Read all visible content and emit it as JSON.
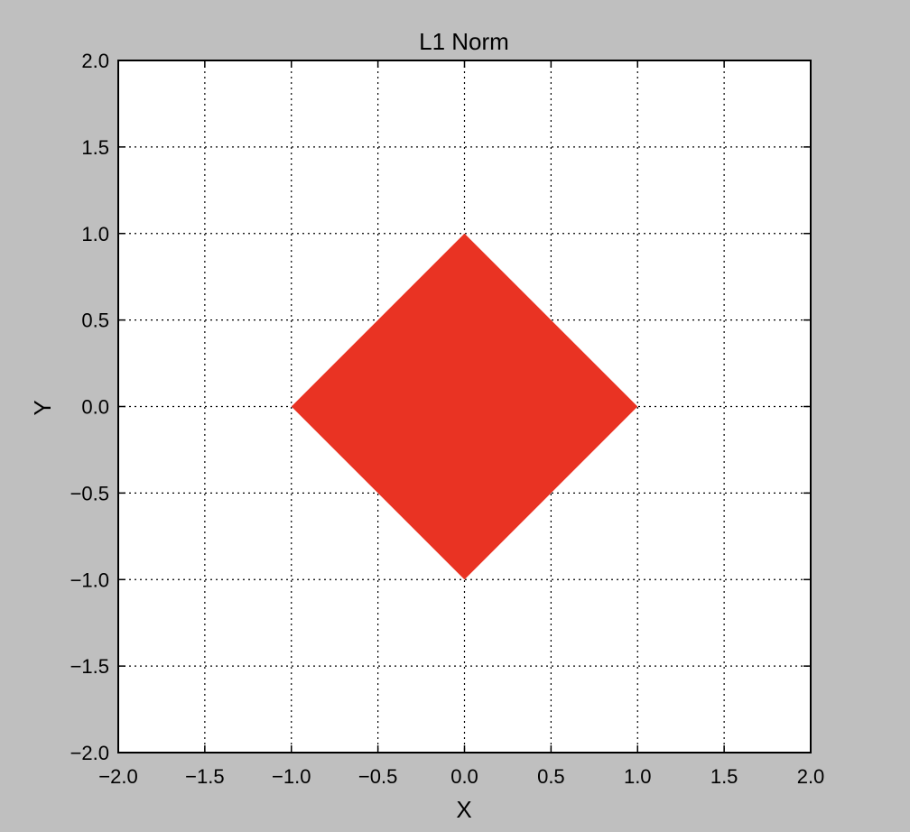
{
  "chart_data": {
    "type": "area",
    "title": "L1 Norm",
    "xlabel": "X",
    "ylabel": "Y",
    "xlim": [
      -2.0,
      2.0
    ],
    "ylim": [
      -2.0,
      2.0
    ],
    "x_ticks": [
      -2.0,
      -1.5,
      -1.0,
      -0.5,
      0.0,
      0.5,
      1.0,
      1.5,
      2.0
    ],
    "y_ticks": [
      -2.0,
      -1.5,
      -1.0,
      -0.5,
      0.0,
      0.5,
      1.0,
      1.5,
      2.0
    ],
    "x_tick_labels": [
      "−2.0",
      "−1.5",
      "−1.0",
      "−0.5",
      "0.0",
      "0.5",
      "1.0",
      "1.5",
      "2.0"
    ],
    "y_tick_labels": [
      "−2.0",
      "−1.5",
      "−1.0",
      "−0.5",
      "0.0",
      "0.5",
      "1.0",
      "1.5",
      "2.0"
    ],
    "grid": true,
    "grid_style": "dotted",
    "series": [
      {
        "fill_color": "#e93323",
        "x": [
          1.0,
          0.0,
          -1.0,
          0.0
        ],
        "y": [
          0.0,
          1.0,
          0.0,
          -1.0
        ]
      }
    ]
  }
}
